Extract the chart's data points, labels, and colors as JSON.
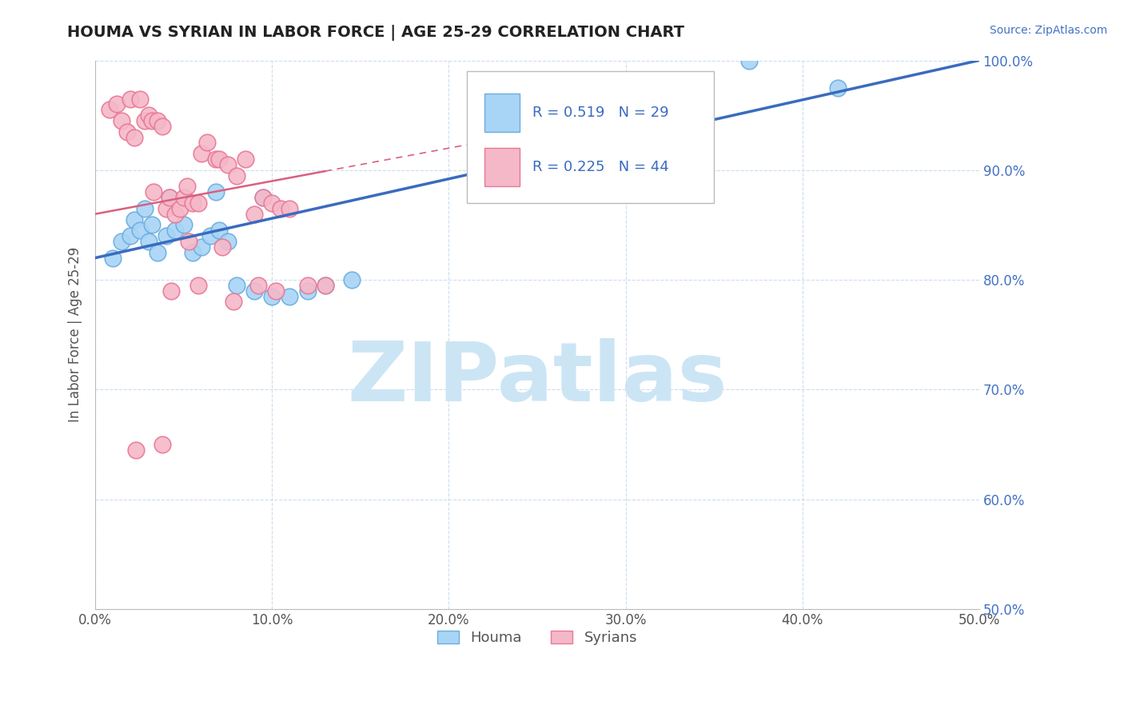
{
  "title": "HOUMA VS SYRIAN IN LABOR FORCE | AGE 25-29 CORRELATION CHART",
  "source_text": "Source: ZipAtlas.com",
  "ylabel": "In Labor Force | Age 25-29",
  "xlim": [
    0.0,
    50.0
  ],
  "ylim": [
    50.0,
    100.0
  ],
  "houma_R": 0.519,
  "houma_N": 29,
  "syrian_R": 0.225,
  "syrian_N": 44,
  "houma_color": "#a8d4f5",
  "syrian_color": "#f5b8c8",
  "houma_edge_color": "#6aaee0",
  "syrian_edge_color": "#e87898",
  "trend_blue": "#3a6bbf",
  "trend_pink": "#d96080",
  "watermark_color": "#cce5f5",
  "watermark_text": "ZIPatlas",
  "houma_x": [
    1.0,
    1.5,
    2.0,
    2.2,
    2.5,
    3.0,
    3.2,
    3.5,
    4.0,
    4.5,
    5.0,
    5.5,
    6.0,
    6.5,
    7.0,
    7.5,
    8.0,
    9.0,
    10.0,
    11.0,
    12.0,
    13.0,
    14.5,
    2.8,
    4.2,
    6.8,
    9.5,
    37.0,
    42.0
  ],
  "houma_y": [
    82.0,
    83.5,
    84.0,
    85.5,
    84.5,
    83.5,
    85.0,
    82.5,
    84.0,
    84.5,
    85.0,
    82.5,
    83.0,
    84.0,
    84.5,
    83.5,
    79.5,
    79.0,
    78.5,
    78.5,
    79.0,
    79.5,
    80.0,
    86.5,
    87.5,
    88.0,
    87.5,
    100.0,
    97.5
  ],
  "syrian_x": [
    0.8,
    1.2,
    1.5,
    1.8,
    2.0,
    2.2,
    2.5,
    2.8,
    3.0,
    3.2,
    3.5,
    3.8,
    4.0,
    4.2,
    4.5,
    4.8,
    5.0,
    5.2,
    5.5,
    5.8,
    6.0,
    6.3,
    6.8,
    7.0,
    7.5,
    8.0,
    8.5,
    9.0,
    9.5,
    10.0,
    10.5,
    11.0,
    12.0,
    13.0,
    3.3,
    5.3,
    7.2,
    4.3,
    5.8,
    7.8,
    9.2,
    10.2,
    2.3,
    3.8
  ],
  "syrian_y": [
    95.5,
    96.0,
    94.5,
    93.5,
    96.5,
    93.0,
    96.5,
    94.5,
    95.0,
    94.5,
    94.5,
    94.0,
    86.5,
    87.5,
    86.0,
    86.5,
    87.5,
    88.5,
    87.0,
    87.0,
    91.5,
    92.5,
    91.0,
    91.0,
    90.5,
    89.5,
    91.0,
    86.0,
    87.5,
    87.0,
    86.5,
    86.5,
    79.5,
    79.5,
    88.0,
    83.5,
    83.0,
    79.0,
    79.5,
    78.0,
    79.5,
    79.0,
    64.5,
    65.0
  ]
}
